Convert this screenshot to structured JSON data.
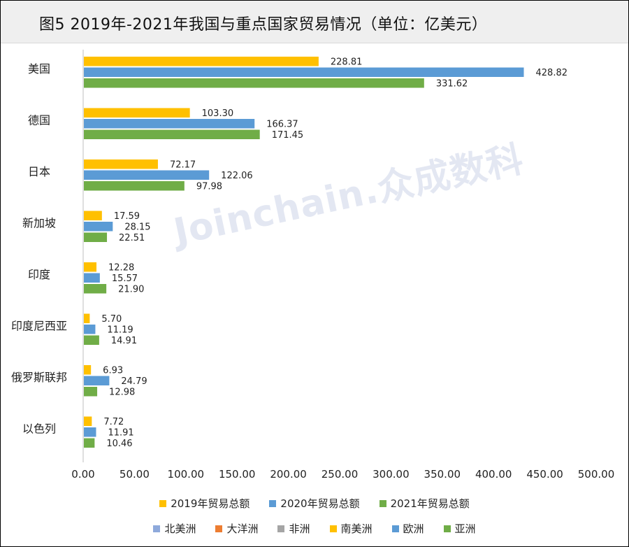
{
  "title": "图5  2019年-2021年我国与重点国家贸易情况（单位：亿美元）",
  "watermark": "Joinchain.众成数科",
  "chart_data": {
    "type": "bar",
    "orientation": "horizontal",
    "categories": [
      "美国",
      "德国",
      "日本",
      "新加坡",
      "印度",
      "印度尼西亚",
      "俄罗斯联邦",
      "以色列"
    ],
    "series": [
      {
        "name": "2019年贸易总额",
        "color": "#FFC000",
        "values": [
          228.81,
          103.3,
          72.17,
          17.59,
          12.28,
          5.7,
          6.93,
          7.72
        ]
      },
      {
        "name": "2020年贸易总额",
        "color": "#5B9BD5",
        "values": [
          428.82,
          166.37,
          122.06,
          28.15,
          15.57,
          11.19,
          24.79,
          11.91
        ]
      },
      {
        "name": "2021年贸易总额",
        "color": "#70AD47",
        "values": [
          331.62,
          171.45,
          97.98,
          22.51,
          21.9,
          14.91,
          12.98,
          10.46
        ]
      }
    ],
    "xlim": [
      0,
      500
    ],
    "xticks": [
      0,
      50,
      100,
      150,
      200,
      250,
      300,
      350,
      400,
      450,
      500
    ],
    "tick_format": "0.00"
  },
  "legend2": [
    {
      "name": "北美洲",
      "color": "#8EA9DB"
    },
    {
      "name": "大洋洲",
      "color": "#ED7D31"
    },
    {
      "name": "非洲",
      "color": "#A5A5A5"
    },
    {
      "name": "南美洲",
      "color": "#FFC000"
    },
    {
      "name": "欧洲",
      "color": "#5B9BD5"
    },
    {
      "name": "亚洲",
      "color": "#70AD47"
    }
  ]
}
